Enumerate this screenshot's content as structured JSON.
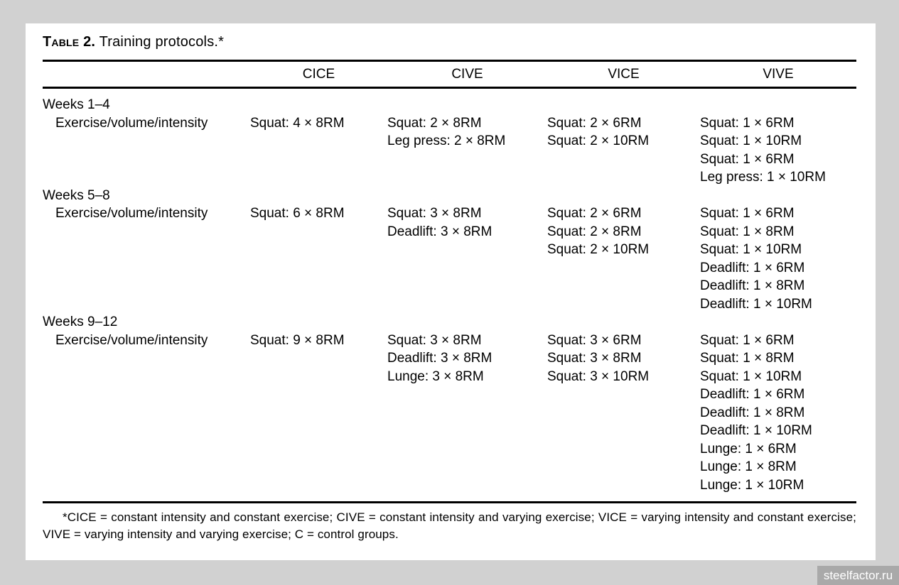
{
  "canvas": {
    "background": "#d1d1d1",
    "page_background": "#ffffff",
    "text_color": "#000000",
    "rule_color": "#000000"
  },
  "table": {
    "title_label": "Table 2.",
    "title_text": "Training protocols.*",
    "columns": [
      "CICE",
      "CIVE",
      "VICE",
      "VIVE"
    ],
    "row_label": "Exercise/volume/intensity",
    "sections": [
      {
        "week": "Weeks 1–4",
        "cells": {
          "cice": [
            "Squat: 4 × 8RM"
          ],
          "cive": [
            "Squat: 2 × 8RM",
            "Leg press: 2 × 8RM"
          ],
          "vice": [
            "Squat: 2 × 6RM",
            "Squat: 2 × 10RM"
          ],
          "vive": [
            "Squat: 1 × 6RM",
            "Squat: 1 × 10RM",
            "Squat: 1 × 6RM",
            "Leg press: 1 × 10RM"
          ]
        }
      },
      {
        "week": "Weeks 5–8",
        "cells": {
          "cice": [
            "Squat: 6 × 8RM"
          ],
          "cive": [
            "Squat: 3 × 8RM",
            "Deadlift: 3 × 8RM"
          ],
          "vice": [
            "Squat: 2 × 6RM",
            "Squat: 2 × 8RM",
            "Squat: 2 × 10RM"
          ],
          "vive": [
            "Squat: 1 × 6RM",
            "Squat: 1 × 8RM",
            "Squat: 1 × 10RM",
            "Deadlift: 1 × 6RM",
            "Deadlift: 1 × 8RM",
            "Deadlift: 1 × 10RM"
          ]
        }
      },
      {
        "week": "Weeks 9–12",
        "cells": {
          "cice": [
            "Squat: 9 × 8RM"
          ],
          "cive": [
            "Squat: 3 × 8RM",
            "Deadlift: 3 × 8RM",
            "Lunge: 3 × 8RM"
          ],
          "vice": [
            "Squat: 3 × 6RM",
            "Squat: 3 × 8RM",
            "Squat: 3 × 10RM"
          ],
          "vive": [
            "Squat: 1 × 6RM",
            "Squat: 1 × 8RM",
            "Squat: 1 × 10RM",
            "Deadlift: 1 × 6RM",
            "Deadlift: 1 × 8RM",
            "Deadlift: 1 × 10RM",
            "Lunge: 1 × 6RM",
            "Lunge: 1 × 8RM",
            "Lunge: 1 × 10RM"
          ]
        }
      }
    ],
    "footnote": "*CICE = constant intensity and constant exercise; CIVE = constant intensity and varying exercise; VICE = varying intensity and constant exercise; VIVE = varying intensity and varying exercise; C = control groups."
  },
  "watermark": {
    "label": "steelfactor.ru",
    "background": "#a9a9a9",
    "color": "#ffffff"
  }
}
